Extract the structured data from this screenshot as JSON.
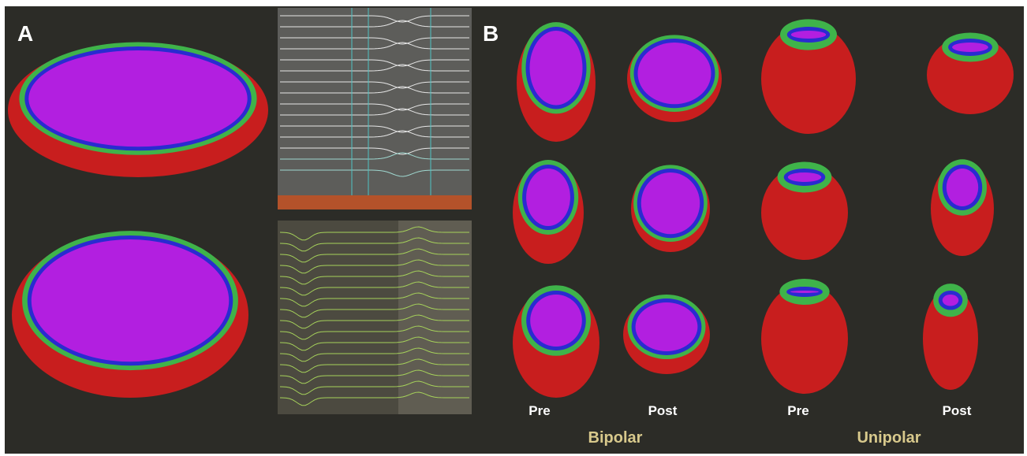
{
  "panels": {
    "a": {
      "label": "A"
    },
    "b": {
      "label": "B",
      "columns": [
        "Pre",
        "Post",
        "Pre",
        "Post"
      ],
      "groups": [
        "Bipolar",
        "Unipolar"
      ]
    }
  }
}
